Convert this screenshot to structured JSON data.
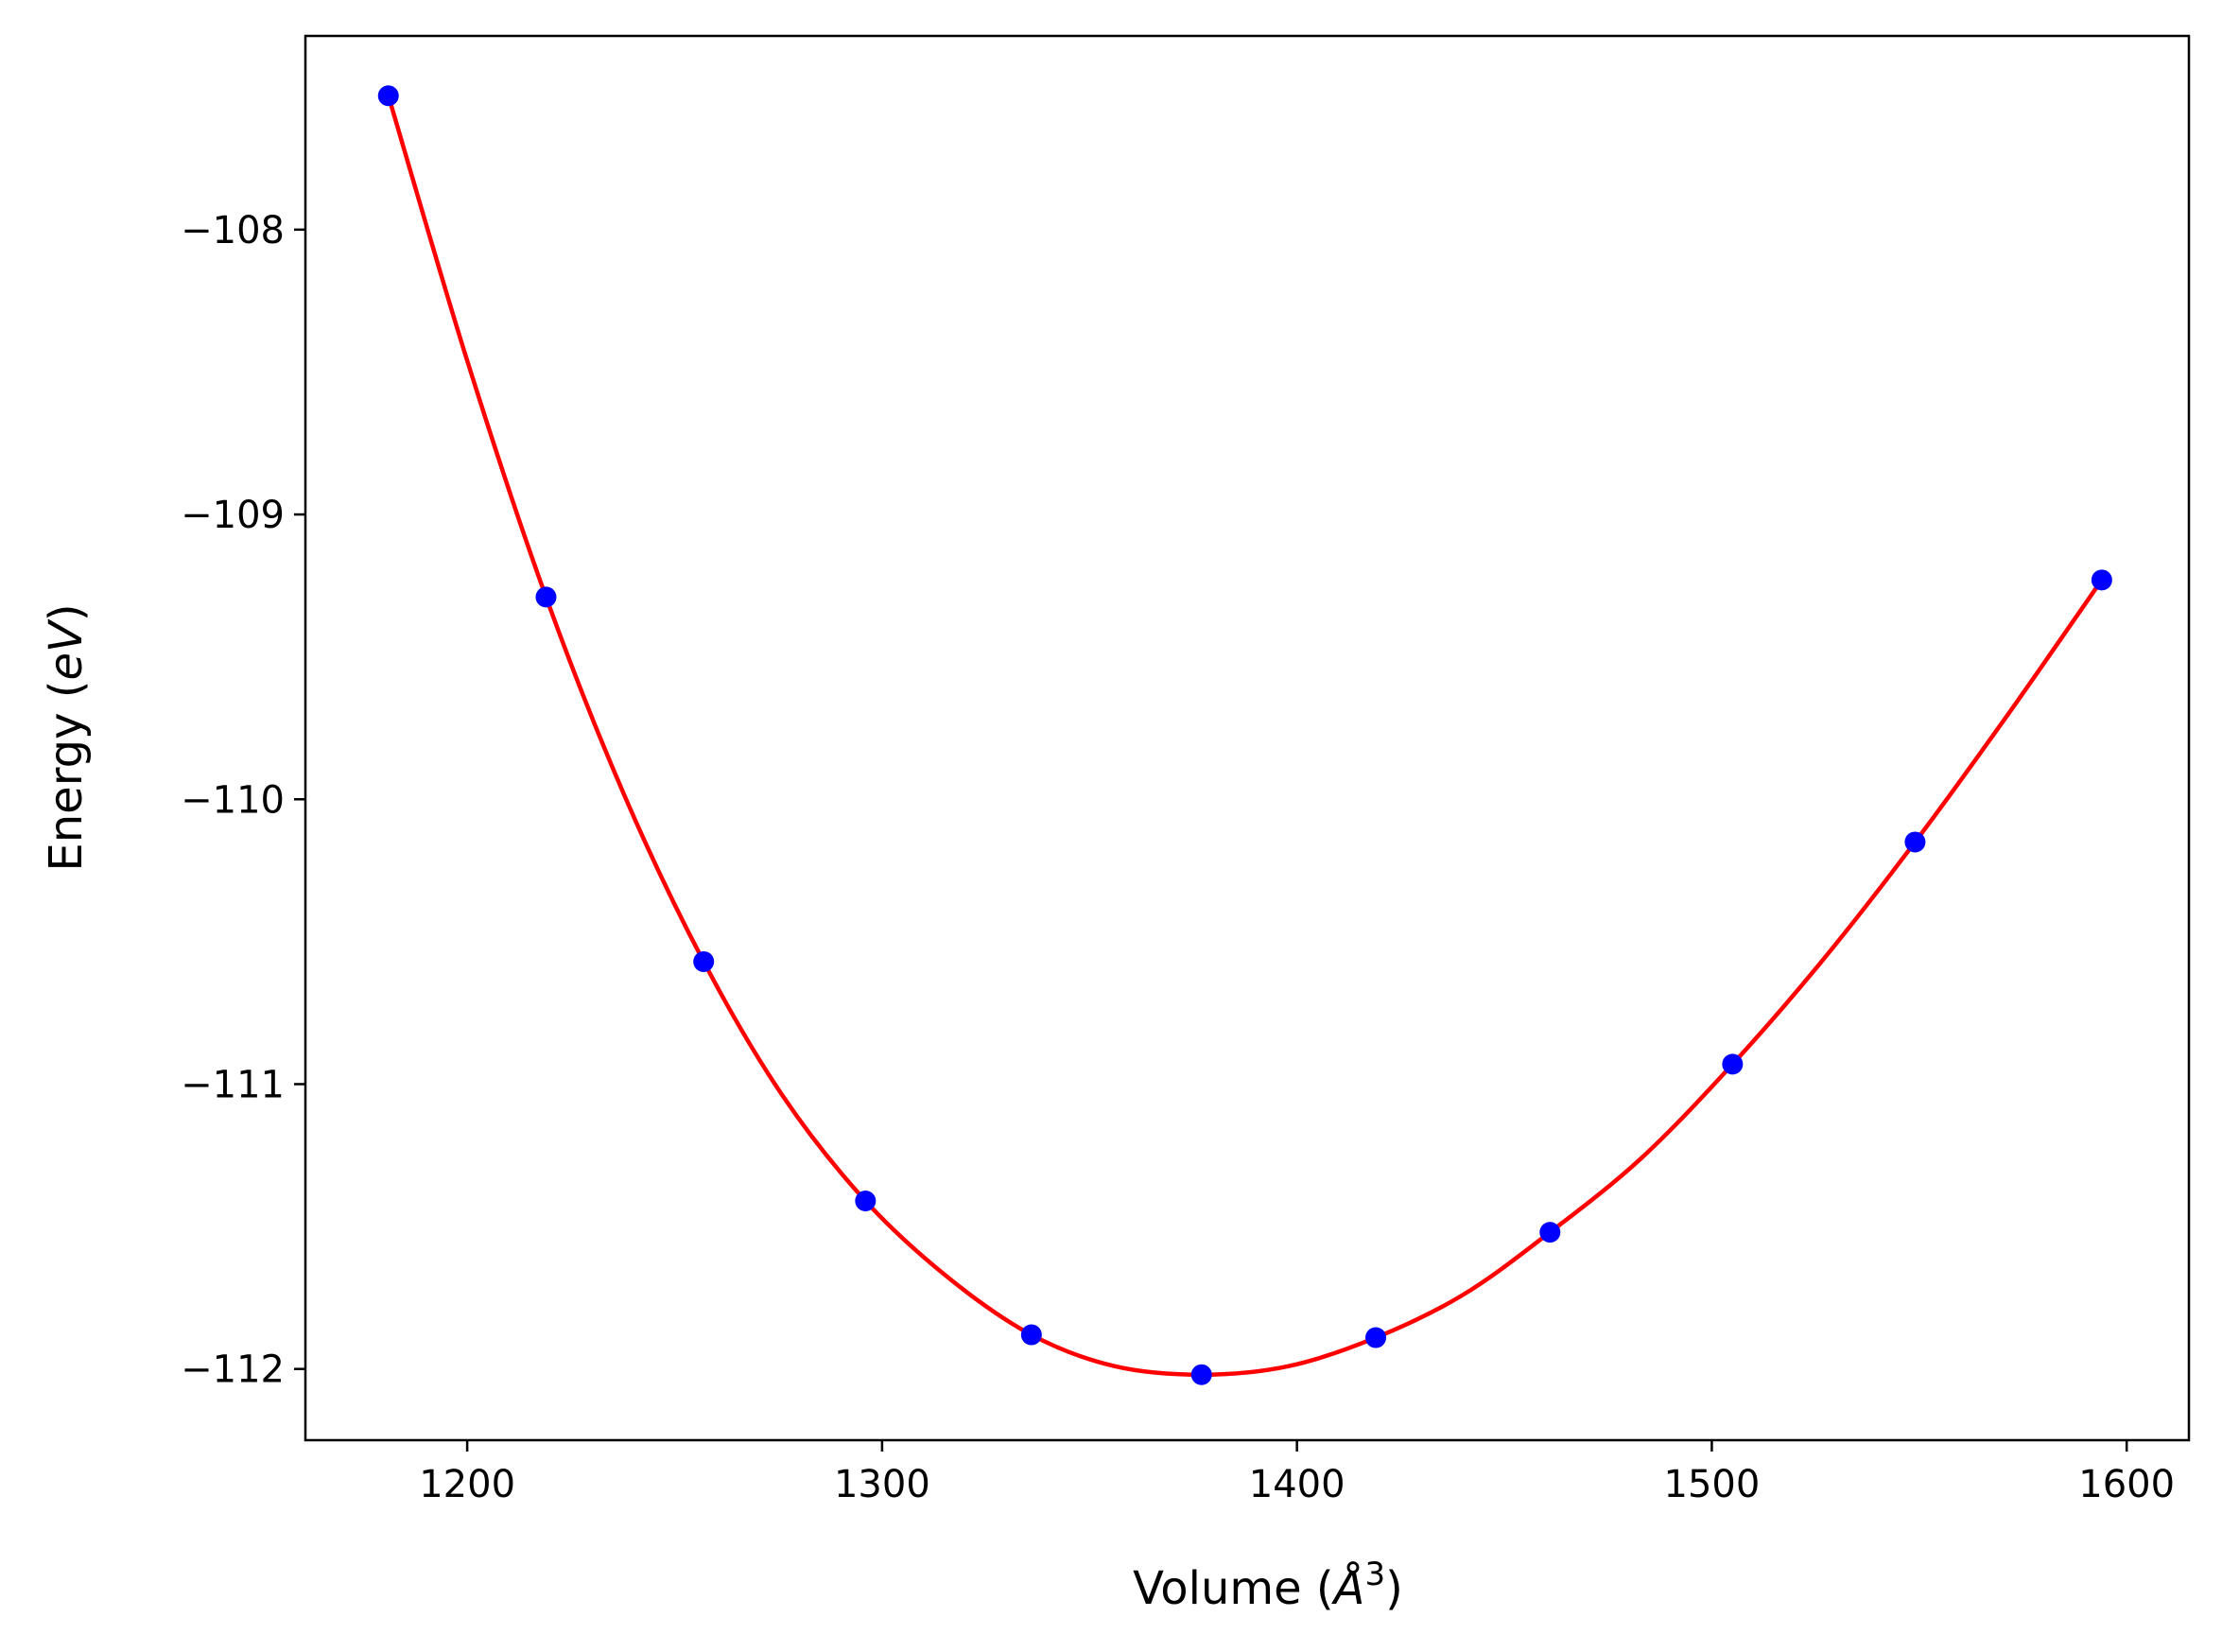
{
  "chart_data": {
    "type": "line",
    "title": "",
    "xlabel": "Volume (",
    "xlabel_symbol": "Å",
    "xlabel_exp": "3",
    "xlabel_close": ")",
    "ylabel": "Energy (",
    "ylabel_symbol": "eV",
    "ylabel_close": ")",
    "xlim": [
      1161,
      1615
    ],
    "ylim": [
      -112.25,
      -107.32
    ],
    "xticks": [
      1200,
      1300,
      1400,
      1500,
      1600
    ],
    "xtick_labels": [
      "1200",
      "1300",
      "1400",
      "1500",
      "1600"
    ],
    "yticks": [
      -108,
      -109,
      -110,
      -111,
      -112
    ],
    "ytick_labels": [
      "−108",
      "−109",
      "−110",
      "−111",
      "−112"
    ],
    "grid": false,
    "series": [
      {
        "kind": "points",
        "color": "#0000ff",
        "x": [
          1181,
          1219,
          1257,
          1296,
          1336,
          1377,
          1419,
          1461,
          1505,
          1549,
          1594
        ],
        "y": [
          -107.53,
          -109.29,
          -110.57,
          -111.41,
          -111.88,
          -112.02,
          -111.89,
          -111.52,
          -110.93,
          -110.15,
          -109.23
        ]
      },
      {
        "kind": "fit-curve",
        "color": "#ff0000",
        "x": [
          1181,
          1200,
          1219,
          1238,
          1257,
          1276,
          1296,
          1316,
          1336,
          1356,
          1377,
          1398,
          1419,
          1440,
          1461,
          1483,
          1505,
          1527,
          1549,
          1571,
          1594
        ],
        "y": [
          -107.53,
          -108.46,
          -109.29,
          -109.99,
          -110.57,
          -111.04,
          -111.41,
          -111.68,
          -111.88,
          -111.99,
          -112.02,
          -111.99,
          -111.89,
          -111.74,
          -111.52,
          -111.26,
          -110.93,
          -110.56,
          -110.15,
          -109.71,
          -109.23
        ]
      }
    ]
  }
}
